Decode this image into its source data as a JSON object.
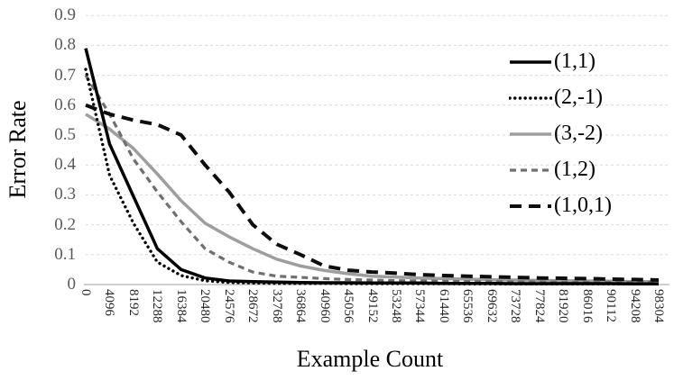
{
  "figure": {
    "y_axis_title": "Error Rate",
    "x_axis_title": "Example Count"
  },
  "chart_data": {
    "type": "line",
    "title": "",
    "xlabel": "Example Count",
    "ylabel": "Error Rate",
    "ylim": [
      0,
      0.9
    ],
    "grid": "horizontal-dashed",
    "legend_position": "inside-top-right",
    "y_tick_labels": [
      "0.9",
      "0.8",
      "0.7",
      "0.6",
      "0.5",
      "0.4",
      "0.3",
      "0.2",
      "0.1",
      "0"
    ],
    "x": [
      0,
      4096,
      8192,
      12288,
      16384,
      20480,
      24576,
      28672,
      32768,
      36864,
      40960,
      45056,
      49152,
      53248,
      57344,
      61440,
      65536,
      69632,
      73728,
      77824,
      81920,
      86016,
      90112,
      94208,
      98304
    ],
    "x_tick_labels": [
      "0",
      "4096",
      "8192",
      "12288",
      "16384",
      "20480",
      "24576",
      "28672",
      "32768",
      "36864",
      "40960",
      "45056",
      "49152",
      "53248",
      "57344",
      "61440",
      "65536",
      "69632",
      "73728",
      "77824",
      "81920",
      "86016",
      "90112",
      "94208",
      "98304"
    ],
    "series": [
      {
        "name": "(1,1)",
        "color": "#000000",
        "dash": "solid",
        "values": [
          0.79,
          0.47,
          0.295,
          0.12,
          0.05,
          0.022,
          0.012,
          0.01,
          0.008,
          0.007,
          0.006,
          0.006,
          0.005,
          0.005,
          0.005,
          0.004,
          0.004,
          0.004,
          0.003,
          0.003,
          0.003,
          0.003,
          0.003,
          0.002,
          0.002
        ]
      },
      {
        "name": "(2,-1)",
        "color": "#000000",
        "dash": "dotted",
        "values": [
          0.72,
          0.365,
          0.205,
          0.075,
          0.03,
          0.013,
          0.007,
          0.005,
          0.004,
          0.004,
          0.004,
          0.003,
          0.003,
          0.003,
          0.003,
          0.003,
          0.002,
          0.002,
          0.002,
          0.002,
          0.002,
          0.002,
          0.002,
          0.002,
          0.002
        ]
      },
      {
        "name": "(3,-2)",
        "color": "#9e9e9e",
        "dash": "solid",
        "values": [
          0.57,
          0.52,
          0.455,
          0.37,
          0.28,
          0.205,
          0.16,
          0.12,
          0.085,
          0.062,
          0.047,
          0.036,
          0.028,
          0.025,
          0.022,
          0.02,
          0.018,
          0.016,
          0.015,
          0.014,
          0.013,
          0.012,
          0.011,
          0.01,
          0.01
        ]
      },
      {
        "name": "(1,2)",
        "color": "#6f6f6f",
        "dash": "dash-short",
        "values": [
          0.7,
          0.57,
          0.42,
          0.31,
          0.21,
          0.12,
          0.075,
          0.042,
          0.028,
          0.024,
          0.02,
          0.017,
          0.015,
          0.013,
          0.012,
          0.011,
          0.01,
          0.01,
          0.009,
          0.009,
          0.008,
          0.008,
          0.008,
          0.007,
          0.007
        ]
      },
      {
        "name": "(1,0,1)",
        "color": "#0d0d0d",
        "dash": "dash-long",
        "values": [
          0.6,
          0.57,
          0.55,
          0.535,
          0.5,
          0.4,
          0.31,
          0.2,
          0.135,
          0.1,
          0.062,
          0.048,
          0.042,
          0.038,
          0.033,
          0.03,
          0.028,
          0.026,
          0.024,
          0.022,
          0.021,
          0.02,
          0.018,
          0.017,
          0.015
        ]
      }
    ],
    "colors": {
      "gridline": "#d9d9d9",
      "axis_line": "#bfbfbf",
      "y_tick_text": "#595959",
      "x_tick_text": "#262626"
    }
  }
}
